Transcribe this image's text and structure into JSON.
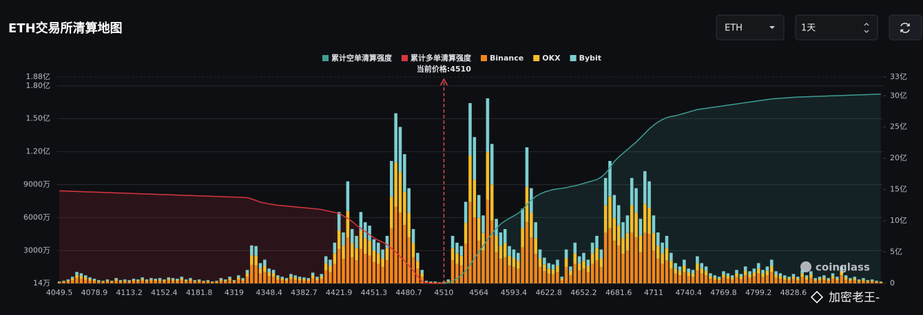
{
  "header": {
    "title": "ETH交易所清算地图",
    "coin_select": "ETH",
    "period_select": "1天"
  },
  "watermarks": [
    "coinglass",
    "加密老王-"
  ],
  "chart_data": {
    "type": "bar",
    "stacked": true,
    "annotation": "当前价格:4510",
    "categories": [
      "4049.5",
      null,
      null,
      null,
      null,
      null,
      null,
      null,
      "4078.9",
      null,
      null,
      null,
      null,
      null,
      null,
      null,
      "4113.2",
      null,
      null,
      null,
      null,
      null,
      null,
      null,
      "4152.4",
      null,
      null,
      null,
      null,
      null,
      null,
      null,
      "4181.8",
      null,
      null,
      null,
      null,
      null,
      null,
      null,
      "4319",
      null,
      null,
      null,
      null,
      null,
      null,
      null,
      "4348.4",
      null,
      null,
      null,
      null,
      null,
      null,
      null,
      "4382.7",
      null,
      null,
      null,
      null,
      null,
      null,
      null,
      "4421.9",
      null,
      null,
      null,
      null,
      null,
      null,
      null,
      "4451.3",
      null,
      null,
      null,
      null,
      null,
      null,
      null,
      "4480.7",
      null,
      null,
      null,
      null,
      null,
      null,
      null,
      "4510",
      null,
      null,
      null,
      null,
      null,
      null,
      null,
      "4564",
      null,
      null,
      null,
      null,
      null,
      null,
      null,
      "4593.4",
      null,
      null,
      null,
      null,
      null,
      null,
      null,
      "4622.8",
      null,
      null,
      null,
      null,
      null,
      null,
      null,
      "4652.2",
      null,
      null,
      null,
      null,
      null,
      null,
      null,
      "4681.6",
      null,
      null,
      null,
      null,
      null,
      null,
      null,
      "4711",
      null,
      null,
      null,
      null,
      null,
      null,
      null,
      "4740.4",
      null,
      null,
      null,
      null,
      null,
      null,
      null,
      "4769.8",
      null,
      null,
      null,
      null,
      null,
      null,
      null,
      "4799.2",
      null,
      null,
      null,
      null,
      null,
      null,
      null,
      "4828.6",
      null,
      null,
      null,
      null,
      null,
      null,
      null,
      null,
      null,
      null,
      null,
      null,
      null,
      null,
      null,
      null,
      null,
      null,
      null,
      null
    ],
    "ylim": [
      14,
      18800
    ],
    "yticks": [
      {
        "value": 14,
        "label": "14万"
      },
      {
        "value": 3000,
        "label": "3000万"
      },
      {
        "value": 6000,
        "label": "6000万"
      },
      {
        "value": 9000,
        "label": "9000万"
      },
      {
        "value": 12000,
        "label": "1.20亿"
      },
      {
        "value": 15000,
        "label": "1.50亿"
      },
      {
        "value": 18000,
        "label": "1.80亿"
      },
      {
        "value": 18800,
        "label": "1.88亿"
      }
    ],
    "y2lim": [
      0,
      33
    ],
    "y2ticks": [
      0,
      {
        "value": 5,
        "label": "5亿"
      },
      {
        "value": 10,
        "label": "10亿"
      },
      {
        "value": 15,
        "label": "15亿"
      },
      {
        "value": 20,
        "label": "20亿"
      },
      {
        "value": 25,
        "label": "25亿"
      },
      {
        "value": 30,
        "label": "30亿"
      },
      {
        "value": 33,
        "label": "33亿"
      }
    ],
    "grid": true,
    "legend": "top",
    "series": [
      {
        "name": "累计空单清算强度",
        "color": "#3e9f95",
        "type": "line",
        "axis": "y2",
        "values": [
          null,
          null,
          null,
          null,
          null,
          null,
          null,
          null,
          null,
          null,
          null,
          null,
          null,
          null,
          null,
          null,
          null,
          null,
          null,
          null,
          null,
          null,
          null,
          null,
          null,
          null,
          null,
          null,
          null,
          null,
          null,
          null,
          null,
          null,
          null,
          null,
          null,
          null,
          null,
          null,
          null,
          null,
          null,
          null,
          null,
          null,
          null,
          null,
          null,
          null,
          null,
          null,
          null,
          null,
          null,
          null,
          null,
          null,
          null,
          null,
          null,
          null,
          null,
          null,
          null,
          null,
          null,
          null,
          null,
          null,
          null,
          null,
          null,
          null,
          null,
          null,
          null,
          null,
          null,
          null,
          null,
          null,
          null,
          null,
          null,
          null,
          null,
          null,
          0,
          0.1,
          0.4,
          0.8,
          1.3,
          2.0,
          3.0,
          4.0,
          5.0,
          6.0,
          7.0,
          8.0,
          8.8,
          9.5,
          10.0,
          10.4,
          10.8,
          11.2,
          11.8,
          12.6,
          13.3,
          13.9,
          14.3,
          14.6,
          14.8,
          15.0,
          15.1,
          15.2,
          15.3,
          15.5,
          15.6,
          15.8,
          16.0,
          16.2,
          16.4,
          16.6,
          17.0,
          17.6,
          18.5,
          19.5,
          20.2,
          20.8,
          21.4,
          22.0,
          22.6,
          23.3,
          24.0,
          24.7,
          25.3,
          25.8,
          26.2,
          26.5,
          26.7,
          26.8,
          27.0,
          27.2,
          27.4,
          27.6,
          27.8,
          27.9,
          28.0,
          28.1,
          28.2,
          28.3,
          28.4,
          28.5,
          28.6,
          28.7,
          28.8,
          28.9,
          29.0,
          29.1,
          29.2,
          29.3,
          29.4,
          29.5,
          29.55,
          29.6,
          29.65,
          29.7,
          29.75,
          29.8,
          29.82,
          29.85,
          29.87,
          29.9,
          29.92,
          29.95,
          29.97,
          30.0,
          30.02,
          30.05,
          30.07,
          30.1,
          30.12,
          30.15,
          30.17,
          30.2,
          30.22,
          30.25,
          30.28
        ]
      },
      {
        "name": "累计多单清算强度",
        "color": "#d9363e",
        "type": "line",
        "axis": "y2",
        "values": [
          14.8,
          14.78,
          14.75,
          14.72,
          14.7,
          14.67,
          14.64,
          14.62,
          14.6,
          14.57,
          14.55,
          14.52,
          14.5,
          14.47,
          14.45,
          14.42,
          14.4,
          14.37,
          14.35,
          14.32,
          14.3,
          14.27,
          14.25,
          14.22,
          14.2,
          14.17,
          14.15,
          14.12,
          14.1,
          14.07,
          14.05,
          14.02,
          14.0,
          13.97,
          13.95,
          13.92,
          13.9,
          13.87,
          13.85,
          13.82,
          13.8,
          13.78,
          13.75,
          13.7,
          13.5,
          13.25,
          13.0,
          12.85,
          12.7,
          12.6,
          12.5,
          12.43,
          12.36,
          12.3,
          12.23,
          12.16,
          12.1,
          12.03,
          11.96,
          11.9,
          11.8,
          11.65,
          11.5,
          11.35,
          11.2,
          10.8,
          10.4,
          9.9,
          9.3,
          8.8,
          8.3,
          7.8,
          7.3,
          6.9,
          6.6,
          6.2,
          5.6,
          5.0,
          4.3,
          3.6,
          2.8,
          2.0,
          1.1,
          0.3,
          0.1,
          0,
          0,
          0,
          0,
          null,
          null,
          null,
          null,
          null,
          null,
          null,
          null,
          null,
          null,
          null,
          null,
          null,
          null,
          null,
          null,
          null,
          null,
          null,
          null,
          null,
          null,
          null,
          null,
          null,
          null,
          null,
          null,
          null,
          null,
          null,
          null,
          null,
          null,
          null,
          null,
          null,
          null,
          null,
          null,
          null,
          null,
          null,
          null,
          null,
          null,
          null,
          null,
          null,
          null,
          null,
          null,
          null,
          null,
          null,
          null,
          null,
          null,
          null,
          null,
          null,
          null,
          null,
          null,
          null,
          null,
          null,
          null,
          null,
          null,
          null,
          null,
          null,
          null,
          null,
          null,
          null,
          null,
          null,
          null,
          null,
          null,
          null,
          null,
          null,
          null,
          null,
          null,
          null,
          null,
          null,
          null,
          null,
          null,
          null,
          null,
          null,
          null,
          null,
          null
        ]
      },
      {
        "name": "Binance",
        "color": "#f0861c",
        "values": [
          90,
          120,
          180,
          300,
          510,
          450,
          360,
          270,
          210,
          150,
          120,
          180,
          120,
          240,
          150,
          180,
          150,
          210,
          180,
          270,
          180,
          240,
          210,
          240,
          180,
          270,
          240,
          210,
          300,
          180,
          240,
          150,
          180,
          120,
          150,
          90,
          120,
          240,
          180,
          300,
          150,
          360,
          240,
          600,
          1680,
          1650,
          900,
          1050,
          660,
          600,
          360,
          300,
          240,
          420,
          360,
          300,
          270,
          240,
          480,
          300,
          420,
          1200,
          1050,
          1800,
          3150,
          2250,
          4200,
          2400,
          2100,
          3150,
          2700,
          2550,
          1950,
          1800,
          1500,
          2100,
          5040,
          7000,
          6440,
          5320,
          4200,
          2400,
          1350,
          600,
          120,
          90,
          90,
          60,
          90,
          180,
          2100,
          1800,
          1650,
          3600,
          7420,
          6020,
          3900,
          3000,
          7616,
          5740,
          2850,
          2250,
          2400,
          1650,
          1500,
          1350,
          3300,
          5600,
          4200,
          2700,
          1500,
          1140,
          900,
          840,
          1050,
          300,
          1500,
          750,
          1800,
          1200,
          1350,
          1050,
          1800,
          2100,
          1500,
          4650,
          5040,
          3900,
          3450,
          2700,
          3000,
          4650,
          4200,
          2850,
          4620,
          4500,
          3000,
          2250,
          1800,
          2100,
          1350,
          900,
          750,
          1050,
          660,
          600,
          1200,
          900,
          750,
          450,
          360,
          300,
          540,
          450,
          360,
          600,
          420,
          750,
          540,
          660,
          900,
          600,
          750,
          1050,
          540,
          450,
          360,
          300,
          420,
          300,
          600,
          360,
          540,
          240,
          300,
          360,
          240,
          450,
          300,
          750,
          360,
          240,
          300,
          180,
          240,
          150,
          180,
          120,
          90
        ]
      },
      {
        "name": "OKX",
        "color": "#f4bd2a",
        "values": [
          48,
          64,
          96,
          160,
          272,
          240,
          192,
          144,
          112,
          80,
          64,
          96,
          64,
          128,
          80,
          96,
          80,
          112,
          96,
          144,
          96,
          128,
          112,
          128,
          96,
          144,
          128,
          112,
          160,
          96,
          128,
          80,
          96,
          64,
          80,
          48,
          64,
          128,
          96,
          160,
          80,
          192,
          128,
          320,
          896,
          880,
          480,
          560,
          352,
          320,
          192,
          160,
          128,
          224,
          192,
          160,
          144,
          128,
          256,
          160,
          224,
          640,
          560,
          960,
          1680,
          1200,
          2400,
          1280,
          1120,
          1680,
          1440,
          1360,
          1040,
          960,
          800,
          1120,
          2880,
          4000,
          3680,
          3040,
          2240,
          1280,
          720,
          320,
          64,
          48,
          48,
          32,
          48,
          96,
          1120,
          960,
          880,
          1920,
          4240,
          3440,
          2080,
          1600,
          4352,
          3280,
          1520,
          1200,
          1280,
          880,
          800,
          720,
          1760,
          3200,
          2240,
          1440,
          800,
          608,
          480,
          448,
          560,
          160,
          800,
          400,
          960,
          640,
          720,
          560,
          960,
          1120,
          800,
          2480,
          2880,
          2080,
          1840,
          1440,
          1600,
          2480,
          2240,
          1520,
          2640,
          2400,
          1600,
          1200,
          960,
          1120,
          720,
          480,
          400,
          560,
          352,
          320,
          640,
          480,
          400,
          240,
          192,
          160,
          288,
          240,
          192,
          320,
          224,
          400,
          288,
          352,
          480,
          320,
          400,
          560,
          288,
          240,
          192,
          160,
          224,
          160,
          320,
          192,
          288,
          128,
          160,
          192,
          128,
          240,
          160,
          400,
          192,
          128,
          160,
          96,
          128,
          80,
          96,
          64,
          48
        ]
      },
      {
        "name": "Bybit",
        "color": "#7dcfd0",
        "values": [
          48,
          64,
          96,
          160,
          272,
          240,
          192,
          144,
          112,
          80,
          64,
          96,
          64,
          128,
          80,
          96,
          80,
          112,
          96,
          144,
          96,
          128,
          112,
          128,
          96,
          144,
          128,
          112,
          160,
          96,
          128,
          80,
          96,
          64,
          80,
          48,
          64,
          128,
          96,
          160,
          80,
          192,
          128,
          320,
          896,
          880,
          480,
          560,
          352,
          320,
          192,
          160,
          128,
          224,
          192,
          160,
          144,
          128,
          256,
          160,
          224,
          640,
          560,
          960,
          1680,
          1200,
          2700,
          1280,
          1120,
          1680,
          1440,
          1360,
          1040,
          960,
          800,
          1120,
          3240,
          4500,
          4140,
          3420,
          2240,
          1280,
          720,
          320,
          64,
          48,
          48,
          32,
          48,
          96,
          1120,
          960,
          880,
          1920,
          4770,
          3870,
          2080,
          1600,
          4896,
          3690,
          1520,
          1200,
          1280,
          880,
          800,
          720,
          1760,
          3600,
          2240,
          1440,
          800,
          608,
          480,
          448,
          560,
          160,
          800,
          400,
          960,
          640,
          720,
          560,
          960,
          1120,
          800,
          2480,
          3240,
          2080,
          1840,
          1440,
          1600,
          2480,
          2240,
          1520,
          2970,
          2400,
          1600,
          1200,
          960,
          1120,
          720,
          480,
          400,
          560,
          352,
          320,
          640,
          480,
          400,
          240,
          192,
          160,
          288,
          240,
          192,
          320,
          224,
          400,
          288,
          352,
          480,
          320,
          400,
          560,
          288,
          240,
          192,
          160,
          224,
          160,
          320,
          192,
          288,
          128,
          160,
          192,
          128,
          240,
          160,
          400,
          192,
          128,
          160,
          96,
          128,
          80,
          96,
          64,
          48
        ]
      }
    ]
  }
}
